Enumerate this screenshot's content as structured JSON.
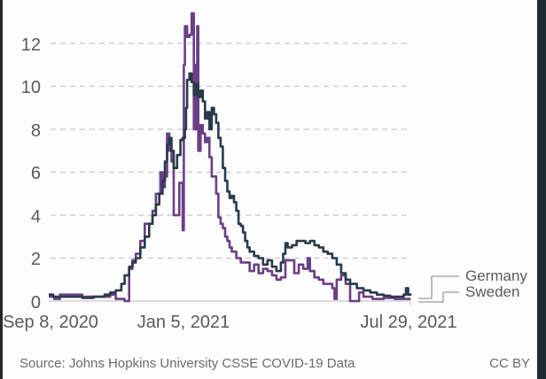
{
  "chart_data": {
    "type": "line",
    "title": "",
    "xlabel": "",
    "ylabel": "",
    "ylim": [
      0,
      13.5
    ],
    "yticks": [
      0,
      2,
      4,
      6,
      8,
      10,
      12
    ],
    "xticks": [
      "Sep 8, 2020",
      "Jan 5, 2021",
      "Jul 29, 2021"
    ],
    "grid": "horizontal dashed",
    "legend_position": "right, end-of-line labels",
    "colors": {
      "Germany": "#2a3a4a",
      "Sweden": "#6b3f86"
    },
    "x_unit": "days since Sep 8, 2020",
    "series": [
      {
        "name": "Germany",
        "points": [
          [
            0,
            0.3
          ],
          [
            4,
            0.2
          ],
          [
            10,
            0.2
          ],
          [
            20,
            0.2
          ],
          [
            30,
            0.15
          ],
          [
            40,
            0.2
          ],
          [
            50,
            0.3
          ],
          [
            55,
            0.4
          ],
          [
            60,
            0.5
          ],
          [
            65,
            0.8
          ],
          [
            68,
            1.2
          ],
          [
            72,
            1.6
          ],
          [
            75,
            1.8
          ],
          [
            78,
            2.0
          ],
          [
            82,
            2.5
          ],
          [
            86,
            3.0
          ],
          [
            90,
            3.6
          ],
          [
            93,
            4.0
          ],
          [
            96,
            4.5
          ],
          [
            99,
            5.0
          ],
          [
            102,
            5.6
          ],
          [
            104,
            6.5
          ],
          [
            106,
            7.3
          ],
          [
            108,
            7.6
          ],
          [
            110,
            7.0
          ],
          [
            112,
            6.2
          ],
          [
            115,
            6.8
          ],
          [
            118,
            7.5
          ],
          [
            120,
            7.6
          ],
          [
            122,
            8.0
          ],
          [
            123,
            9.0
          ],
          [
            124,
            10.3
          ],
          [
            126,
            10.6
          ],
          [
            128,
            10.2
          ],
          [
            130,
            9.6
          ],
          [
            132,
            10.1
          ],
          [
            134,
            9.5
          ],
          [
            136,
            9.8
          ],
          [
            138,
            9.3
          ],
          [
            140,
            8.5
          ],
          [
            142,
            8.8
          ],
          [
            144,
            8.0
          ],
          [
            146,
            9.0
          ],
          [
            148,
            8.7
          ],
          [
            150,
            8.3
          ],
          [
            152,
            7.6
          ],
          [
            154,
            7.2
          ],
          [
            156,
            6.2
          ],
          [
            158,
            5.6
          ],
          [
            160,
            5.1
          ],
          [
            162,
            4.8
          ],
          [
            164,
            4.9
          ],
          [
            166,
            4.6
          ],
          [
            168,
            4.2
          ],
          [
            170,
            3.6
          ],
          [
            172,
            3.5
          ],
          [
            174,
            3.2
          ],
          [
            176,
            2.8
          ],
          [
            178,
            2.5
          ],
          [
            180,
            2.3
          ],
          [
            184,
            2.1
          ],
          [
            188,
            2.0
          ],
          [
            192,
            1.7
          ],
          [
            196,
            1.9
          ],
          [
            200,
            1.6
          ],
          [
            204,
            1.4
          ],
          [
            208,
            1.8
          ],
          [
            210,
            2.2
          ],
          [
            212,
            2.7
          ],
          [
            214,
            2.5
          ],
          [
            218,
            2.6
          ],
          [
            222,
            2.8
          ],
          [
            226,
            2.8
          ],
          [
            230,
            2.7
          ],
          [
            234,
            2.8
          ],
          [
            238,
            2.6
          ],
          [
            242,
            2.5
          ],
          [
            246,
            2.3
          ],
          [
            250,
            2.2
          ],
          [
            254,
            2.0
          ],
          [
            258,
            1.7
          ],
          [
            262,
            1.3
          ],
          [
            266,
            1.0
          ],
          [
            270,
            0.8
          ],
          [
            276,
            0.6
          ],
          [
            282,
            0.5
          ],
          [
            288,
            0.4
          ],
          [
            294,
            0.3
          ],
          [
            300,
            0.25
          ],
          [
            306,
            0.2
          ],
          [
            312,
            0.2
          ],
          [
            318,
            0.3
          ],
          [
            320,
            0.6
          ],
          [
            322,
            0.3
          ],
          [
            324,
            0.35
          ]
        ]
      },
      {
        "name": "Sweden",
        "points": [
          [
            0,
            0.2
          ],
          [
            5,
            0.1
          ],
          [
            10,
            0.3
          ],
          [
            20,
            0.3
          ],
          [
            30,
            0.2
          ],
          [
            40,
            0.2
          ],
          [
            50,
            0.2
          ],
          [
            55,
            0.3
          ],
          [
            60,
            0.1
          ],
          [
            65,
            0.1
          ],
          [
            68,
            0.0
          ],
          [
            72,
            1.5
          ],
          [
            75,
            1.9
          ],
          [
            78,
            2.2
          ],
          [
            82,
            2.8
          ],
          [
            86,
            3.6
          ],
          [
            90,
            3.6
          ],
          [
            93,
            4.2
          ],
          [
            96,
            5.0
          ],
          [
            99,
            5.0
          ],
          [
            100,
            6.0
          ],
          [
            102,
            5.3
          ],
          [
            104,
            5.8
          ],
          [
            106,
            7.8
          ],
          [
            108,
            7.0
          ],
          [
            110,
            6.5
          ],
          [
            112,
            4.0
          ],
          [
            115,
            4.0
          ],
          [
            117,
            5.5
          ],
          [
            119,
            5.5
          ],
          [
            120,
            3.3
          ],
          [
            121,
            11.0
          ],
          [
            122,
            12.8
          ],
          [
            124,
            12.3
          ],
          [
            126,
            12.4
          ],
          [
            128,
            13.4
          ],
          [
            130,
            8.0
          ],
          [
            132,
            11.0
          ],
          [
            133,
            12.8
          ],
          [
            134,
            7.0
          ],
          [
            136,
            8.2
          ],
          [
            138,
            7.8
          ],
          [
            140,
            7.4
          ],
          [
            142,
            7.6
          ],
          [
            144,
            6.7
          ],
          [
            146,
            5.8
          ],
          [
            148,
            5.8
          ],
          [
            150,
            5.0
          ],
          [
            152,
            3.9
          ],
          [
            154,
            3.6
          ],
          [
            156,
            3.4
          ],
          [
            158,
            3.0
          ],
          [
            160,
            2.8
          ],
          [
            162,
            2.5
          ],
          [
            164,
            2.3
          ],
          [
            168,
            2.0
          ],
          [
            172,
            1.8
          ],
          [
            176,
            1.8
          ],
          [
            180,
            1.4
          ],
          [
            184,
            1.7
          ],
          [
            188,
            1.3
          ],
          [
            192,
            1.5
          ],
          [
            196,
            1.4
          ],
          [
            200,
            1.2
          ],
          [
            204,
            1.0
          ],
          [
            208,
            1.1
          ],
          [
            212,
            1.9
          ],
          [
            216,
            1.9
          ],
          [
            220,
            1.3
          ],
          [
            224,
            1.7
          ],
          [
            228,
            1.5
          ],
          [
            232,
            2.0
          ],
          [
            234,
            1.4
          ],
          [
            238,
            1.1
          ],
          [
            242,
            1.0
          ],
          [
            246,
            0.8
          ],
          [
            250,
            0.8
          ],
          [
            254,
            0.6
          ],
          [
            256,
            0.1
          ],
          [
            258,
            1.0
          ],
          [
            262,
            1.2
          ],
          [
            266,
            0.8
          ],
          [
            270,
            0.0
          ],
          [
            274,
            0.0
          ],
          [
            278,
            0.4
          ],
          [
            282,
            0.2
          ],
          [
            290,
            0.1
          ],
          [
            300,
            0.15
          ],
          [
            310,
            0.1
          ],
          [
            318,
            0.1
          ],
          [
            324,
            0.1
          ]
        ]
      }
    ]
  },
  "axes": {
    "y_labels": [
      "0",
      "2",
      "4",
      "6",
      "8",
      "10",
      "12"
    ],
    "x_labels": [
      "Sep 8, 2020",
      "Jan 5, 2021",
      "Jul 29, 2021"
    ]
  },
  "legend": {
    "germany": "Germany",
    "sweden": "Sweden"
  },
  "footer": {
    "source": "Source: Johns Hopkins University CSSE COVID-19 Data",
    "license": "CC BY"
  }
}
